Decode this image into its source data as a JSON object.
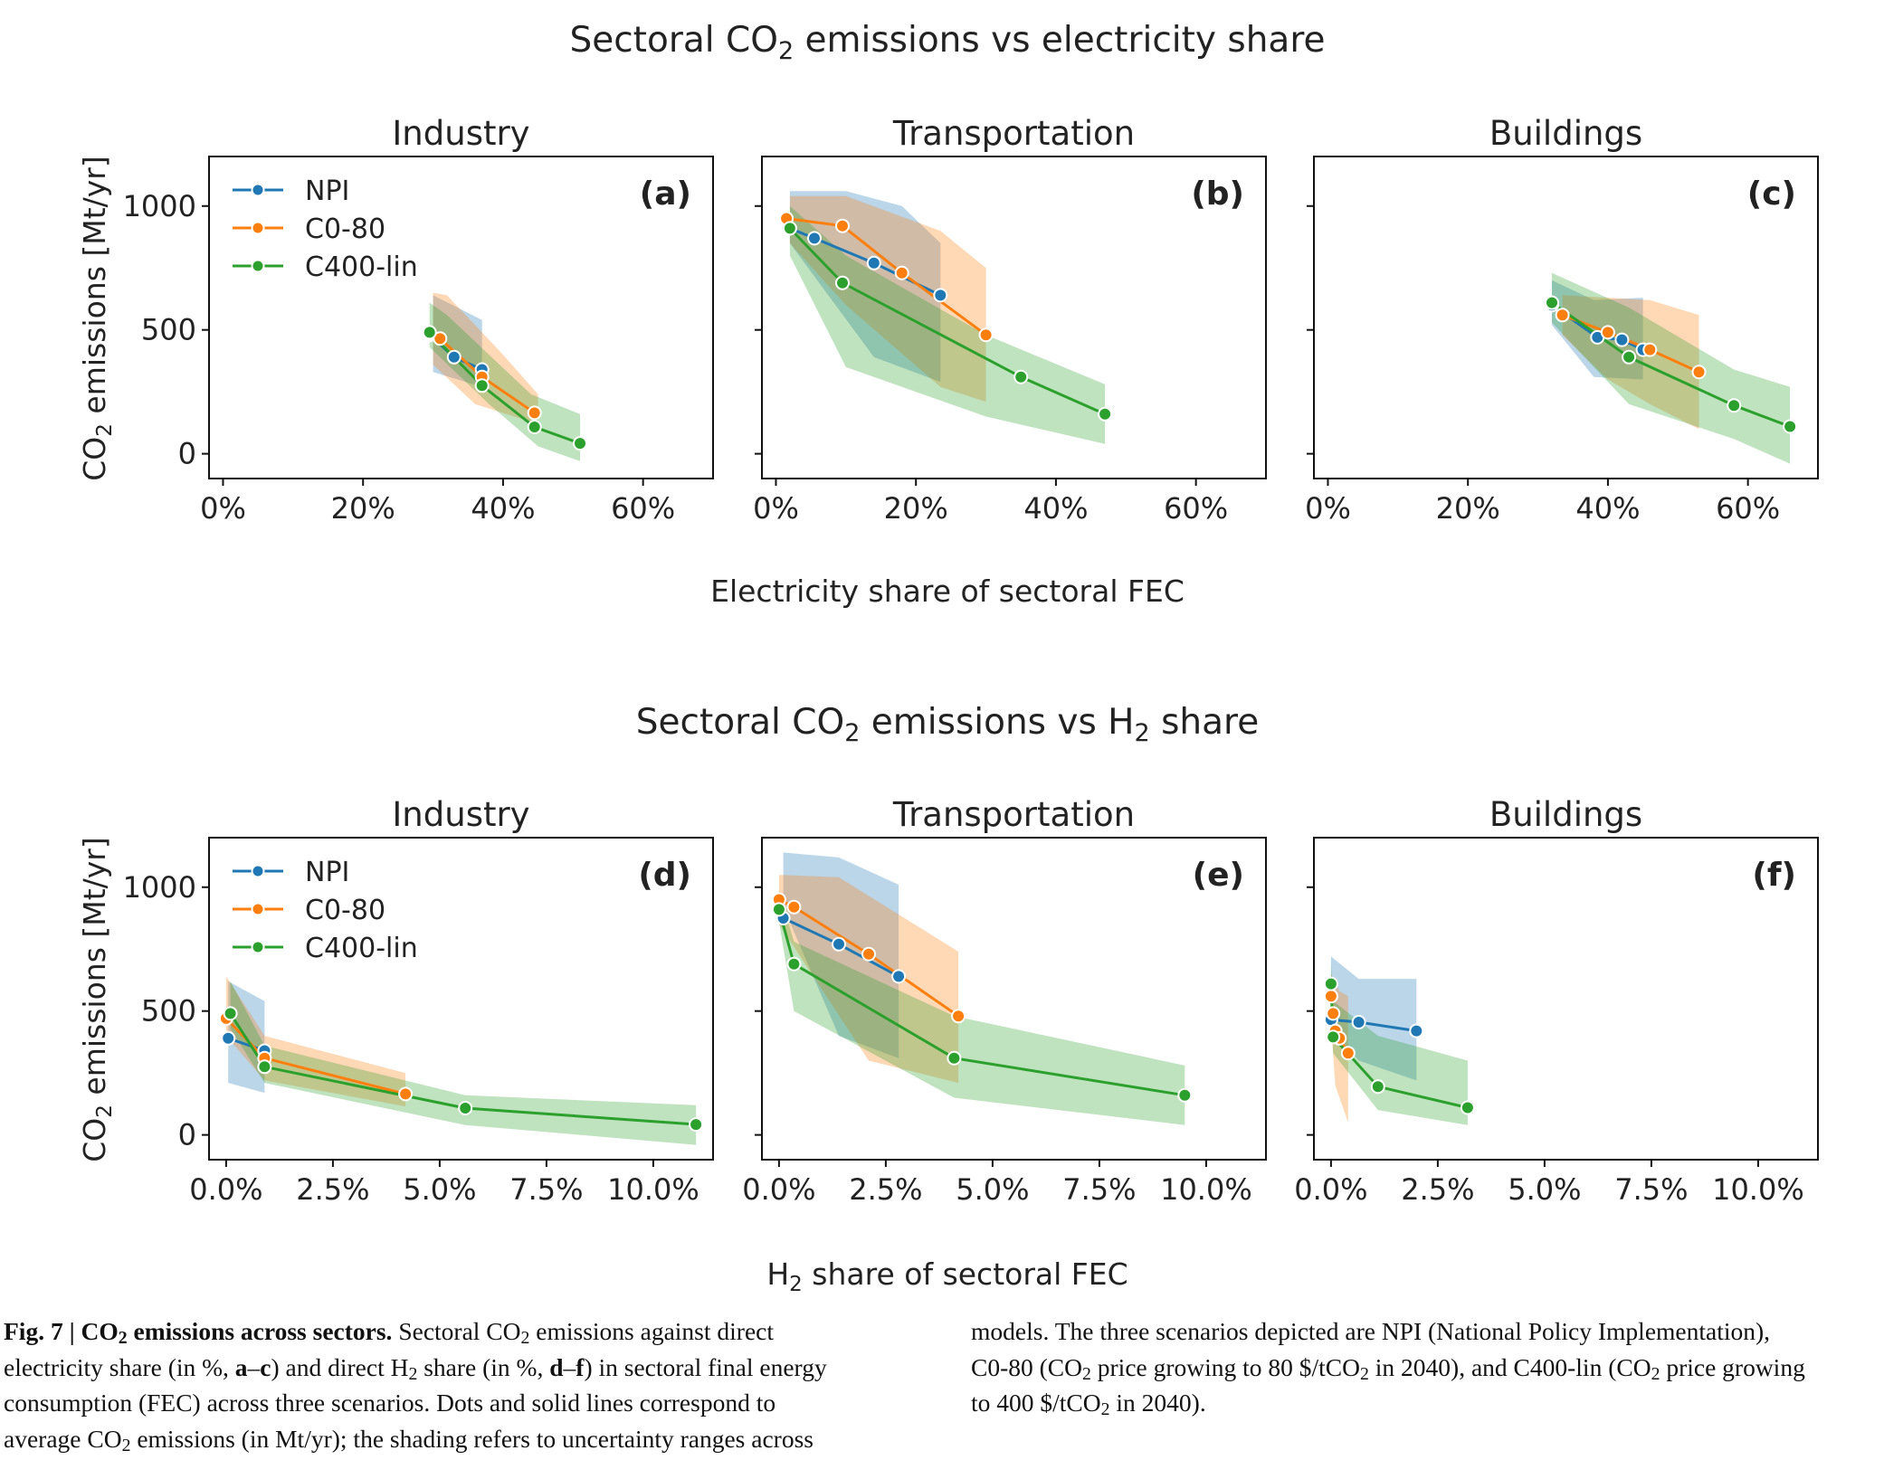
{
  "figure": {
    "row1_title": [
      "Sectoral CO",
      "2",
      " emissions vs electricity share"
    ],
    "row2_title": [
      "Sectoral CO",
      "2",
      " emissions vs H",
      "2",
      " share"
    ],
    "row1_xlabel": "Electricity share of sectoral FEC",
    "row2_xlabel": [
      "H",
      "2",
      " share of sectoral FEC"
    ],
    "ylabel": [
      "CO",
      "2",
      " emissions [Mt/yr]"
    ]
  },
  "colors": {
    "NPI": "#1f77b4",
    "C0-80": "#ff7f0e",
    "C400-lin": "#2ca02c"
  },
  "chart_data": [
    {
      "type": "line",
      "panel": "(a)",
      "title": "Industry",
      "xlim": [
        -2,
        70
      ],
      "ylim": [
        -100,
        1200
      ],
      "xticks": [
        0,
        20,
        40,
        60
      ],
      "xtick_labels": [
        "0%",
        "20%",
        "40%",
        "60%"
      ],
      "yticks": [
        0,
        500,
        1000
      ],
      "ytick_labels": [
        "0",
        "500",
        "1000"
      ],
      "legend": [
        "NPI",
        "C0-80",
        "C400-lin"
      ],
      "legend_position": "upper-left",
      "series": [
        {
          "name": "NPI",
          "x": [
            29.5,
            33,
            37
          ],
          "y": [
            480,
            390,
            340
          ],
          "band_x": [
            30,
            37,
            37,
            30
          ],
          "band_y": [
            640,
            540,
            270,
            330
          ]
        },
        {
          "name": "C0-80",
          "x": [
            29.5,
            31,
            37,
            44.5
          ],
          "y": [
            485,
            465,
            310,
            165
          ],
          "band_x": [
            30,
            32,
            40,
            45,
            45,
            36,
            30
          ],
          "band_y": [
            650,
            640,
            400,
            240,
            120,
            200,
            360
          ]
        },
        {
          "name": "C400-lin",
          "x": [
            29.5,
            37,
            44.5,
            51
          ],
          "y": [
            490,
            275,
            108,
            42
          ],
          "band_x": [
            29.5,
            32,
            38,
            44,
            51,
            51,
            45,
            38,
            29.5
          ],
          "band_y": [
            610,
            560,
            400,
            240,
            160,
            -30,
            30,
            200,
            430
          ]
        }
      ]
    },
    {
      "type": "line",
      "panel": "(b)",
      "title": "Transportation",
      "xlim": [
        -2,
        70
      ],
      "ylim": [
        -100,
        1200
      ],
      "xticks": [
        0,
        20,
        40,
        60
      ],
      "xtick_labels": [
        "0%",
        "20%",
        "40%",
        "60%"
      ],
      "yticks": [
        0,
        500,
        1000
      ],
      "ytick_labels": [
        "",
        "",
        ""
      ],
      "series": [
        {
          "name": "NPI",
          "x": [
            2,
            5.5,
            14,
            23.5
          ],
          "y": [
            910,
            870,
            770,
            640
          ],
          "band_x": [
            2,
            10,
            18,
            23.5,
            23.5,
            14,
            2
          ],
          "band_y": [
            1060,
            1060,
            1000,
            850,
            290,
            390,
            850
          ]
        },
        {
          "name": "C0-80",
          "x": [
            1.5,
            9.5,
            18,
            30
          ],
          "y": [
            950,
            920,
            730,
            480
          ],
          "band_x": [
            2,
            10,
            23.5,
            30,
            30,
            23.5,
            10,
            2
          ],
          "band_y": [
            1040,
            1040,
            900,
            750,
            210,
            270,
            600,
            850
          ]
        },
        {
          "name": "C400-lin",
          "x": [
            2,
            9.5,
            35,
            47
          ],
          "y": [
            910,
            690,
            310,
            160
          ],
          "band_x": [
            2,
            10,
            30,
            47,
            47,
            30,
            10,
            2
          ],
          "band_y": [
            1000,
            800,
            480,
            280,
            40,
            150,
            350,
            800
          ]
        }
      ]
    },
    {
      "type": "line",
      "panel": "(c)",
      "title": "Buildings",
      "xlim": [
        -2,
        70
      ],
      "ylim": [
        -100,
        1200
      ],
      "xticks": [
        0,
        20,
        40,
        60
      ],
      "xtick_labels": [
        "0%",
        "20%",
        "40%",
        "60%"
      ],
      "yticks": [
        0,
        500,
        1000
      ],
      "ytick_labels": [
        "",
        "",
        ""
      ],
      "series": [
        {
          "name": "NPI",
          "x": [
            32,
            38.5,
            42,
            45
          ],
          "y": [
            600,
            470,
            460,
            420
          ],
          "band_x": [
            32,
            38,
            45,
            45,
            38,
            32
          ],
          "band_y": [
            700,
            620,
            630,
            300,
            310,
            520
          ]
        },
        {
          "name": "C0-80",
          "x": [
            33.5,
            40,
            46,
            53
          ],
          "y": [
            560,
            490,
            420,
            330
          ],
          "band_x": [
            33.5,
            40,
            46,
            53,
            53,
            46,
            40,
            33.5
          ],
          "band_y": [
            640,
            630,
            620,
            560,
            100,
            200,
            300,
            480
          ]
        },
        {
          "name": "C400-lin",
          "x": [
            32,
            43,
            58,
            66
          ],
          "y": [
            610,
            390,
            195,
            110
          ],
          "band_x": [
            32,
            43,
            58,
            66,
            66,
            58,
            43,
            32
          ],
          "band_y": [
            730,
            590,
            340,
            270,
            -40,
            60,
            200,
            530
          ]
        }
      ]
    },
    {
      "type": "line",
      "panel": "(d)",
      "title": "Industry",
      "xlim": [
        -0.4,
        11.4
      ],
      "ylim": [
        -100,
        1200
      ],
      "xticks": [
        0,
        2.5,
        5,
        7.5,
        10
      ],
      "xtick_labels": [
        "0.0%",
        "2.5%",
        "5.0%",
        "7.5%",
        "10.0%"
      ],
      "yticks": [
        0,
        500,
        1000
      ],
      "ytick_labels": [
        "0",
        "500",
        "1000"
      ],
      "legend": [
        "NPI",
        "C0-80",
        "C400-lin"
      ],
      "legend_position": "upper-left",
      "series": [
        {
          "name": "NPI",
          "x": [
            0.05,
            0.9
          ],
          "y": [
            390,
            340
          ],
          "band_x": [
            0.05,
            0.9,
            0.9,
            0.05
          ],
          "band_y": [
            620,
            540,
            170,
            210
          ]
        },
        {
          "name": "C0-80",
          "x": [
            0,
            0.9,
            4.2
          ],
          "y": [
            470,
            310,
            165
          ],
          "band_x": [
            0,
            0.9,
            4.2,
            4.2,
            0.9,
            0
          ],
          "band_y": [
            640,
            400,
            250,
            115,
            220,
            400
          ]
        },
        {
          "name": "C400-lin",
          "x": [
            0.1,
            0.9,
            5.6,
            11
          ],
          "y": [
            490,
            275,
            108,
            42
          ],
          "band_x": [
            0.1,
            0.9,
            5.6,
            11,
            11,
            5.6,
            0.9,
            0.1
          ],
          "band_y": [
            620,
            360,
            160,
            120,
            -40,
            40,
            210,
            430
          ]
        }
      ]
    },
    {
      "type": "line",
      "panel": "(e)",
      "title": "Transportation",
      "xlim": [
        -0.4,
        11.4
      ],
      "ylim": [
        -100,
        1200
      ],
      "xticks": [
        0,
        2.5,
        5,
        7.5,
        10
      ],
      "xtick_labels": [
        "0.0%",
        "2.5%",
        "5.0%",
        "7.5%",
        "10.0%"
      ],
      "yticks": [
        0,
        500,
        1000
      ],
      "ytick_labels": [
        "",
        "",
        ""
      ],
      "series": [
        {
          "name": "NPI",
          "x": [
            0.1,
            1.4,
            2.8
          ],
          "y": [
            875,
            770,
            640
          ],
          "band_x": [
            0.1,
            1.4,
            2.8,
            2.8,
            1.4,
            0.1
          ],
          "band_y": [
            1140,
            1120,
            1010,
            310,
            400,
            920
          ]
        },
        {
          "name": "C0-80",
          "x": [
            0,
            0.35,
            2.1,
            4.2
          ],
          "y": [
            950,
            920,
            730,
            480
          ],
          "band_x": [
            0,
            1.4,
            4.2,
            4.2,
            2.1,
            0
          ],
          "band_y": [
            1050,
            1040,
            740,
            210,
            300,
            850
          ]
        },
        {
          "name": "C400-lin",
          "x": [
            0,
            0.35,
            4.1,
            9.5
          ],
          "y": [
            910,
            690,
            310,
            160
          ],
          "band_x": [
            0,
            0.35,
            4.1,
            9.5,
            9.5,
            4.1,
            0.35,
            0
          ],
          "band_y": [
            990,
            780,
            480,
            280,
            40,
            150,
            500,
            860
          ]
        }
      ]
    },
    {
      "type": "line",
      "panel": "(f)",
      "title": "Buildings",
      "xlim": [
        -0.4,
        11.4
      ],
      "ylim": [
        -100,
        1200
      ],
      "xticks": [
        0,
        2.5,
        5,
        7.5,
        10
      ],
      "xtick_labels": [
        "0.0%",
        "2.5%",
        "5.0%",
        "7.5%",
        "10.0%"
      ],
      "yticks": [
        0,
        500,
        1000
      ],
      "ytick_labels": [
        "",
        "",
        ""
      ],
      "series": [
        {
          "name": "NPI",
          "x": [
            0,
            0.65,
            2
          ],
          "y": [
            465,
            455,
            420
          ],
          "band_x": [
            0,
            0.65,
            2,
            2,
            0.65,
            0
          ],
          "band_y": [
            720,
            630,
            630,
            220,
            300,
            430
          ]
        },
        {
          "name": "C0-80",
          "x": [
            0,
            0.05,
            0.1,
            0.2,
            0.4
          ],
          "y": [
            560,
            490,
            420,
            390,
            330
          ],
          "band_x": [
            0,
            0.2,
            0.4,
            0.4,
            0.1,
            0
          ],
          "band_y": [
            650,
            580,
            560,
            50,
            200,
            450
          ]
        },
        {
          "name": "C400-lin",
          "x": [
            0,
            0.05,
            1.1,
            3.2
          ],
          "y": [
            610,
            395,
            195,
            110
          ],
          "band_x": [
            0,
            0.05,
            1.1,
            3.2,
            3.2,
            1.1,
            0.05,
            0
          ],
          "band_y": [
            700,
            540,
            400,
            300,
            40,
            100,
            330,
            560
          ]
        }
      ]
    }
  ],
  "caption": {
    "fig_label": "Fig. 7 | ",
    "title_pre": "CO",
    "title_sub": "2",
    "title_post": " emissions across sectors.",
    "l1_a": " Sectoral CO",
    "l1_sub": "2",
    "l1_b": " emissions against direct",
    "l2_a": "electricity share (in %, ",
    "l2_b1": "a",
    "l2_c": "–",
    "l2_b2": "c",
    "l2_d": ") and direct H",
    "l2_sub": "2",
    "l2_e": " share (in %, ",
    "l2_b3": "d",
    "l2_f": "–",
    "l2_b4": "f",
    "l2_g": ") in sectoral final energy",
    "l3": "consumption (FEC) across three scenarios. Dots and solid lines correspond to",
    "l4_a": "average CO",
    "l4_sub": "2",
    "l4_b": " emissions (in Mt/yr); the shading refers to uncertainty ranges across",
    "r1": "models. The three scenarios depicted are NPI (National Policy Implementation),",
    "r2_a": "C0-80 (CO",
    "r2_sub": "2",
    "r2_b": " price growing to 80 $/tCO",
    "r2_sub2": "2",
    "r2_c": " in 2040), and C400-lin (CO",
    "r2_sub3": "2",
    "r2_d": " price growing",
    "r3_a": "to 400 $/tCO",
    "r3_sub": "2",
    "r3_b": " in 2040)."
  }
}
